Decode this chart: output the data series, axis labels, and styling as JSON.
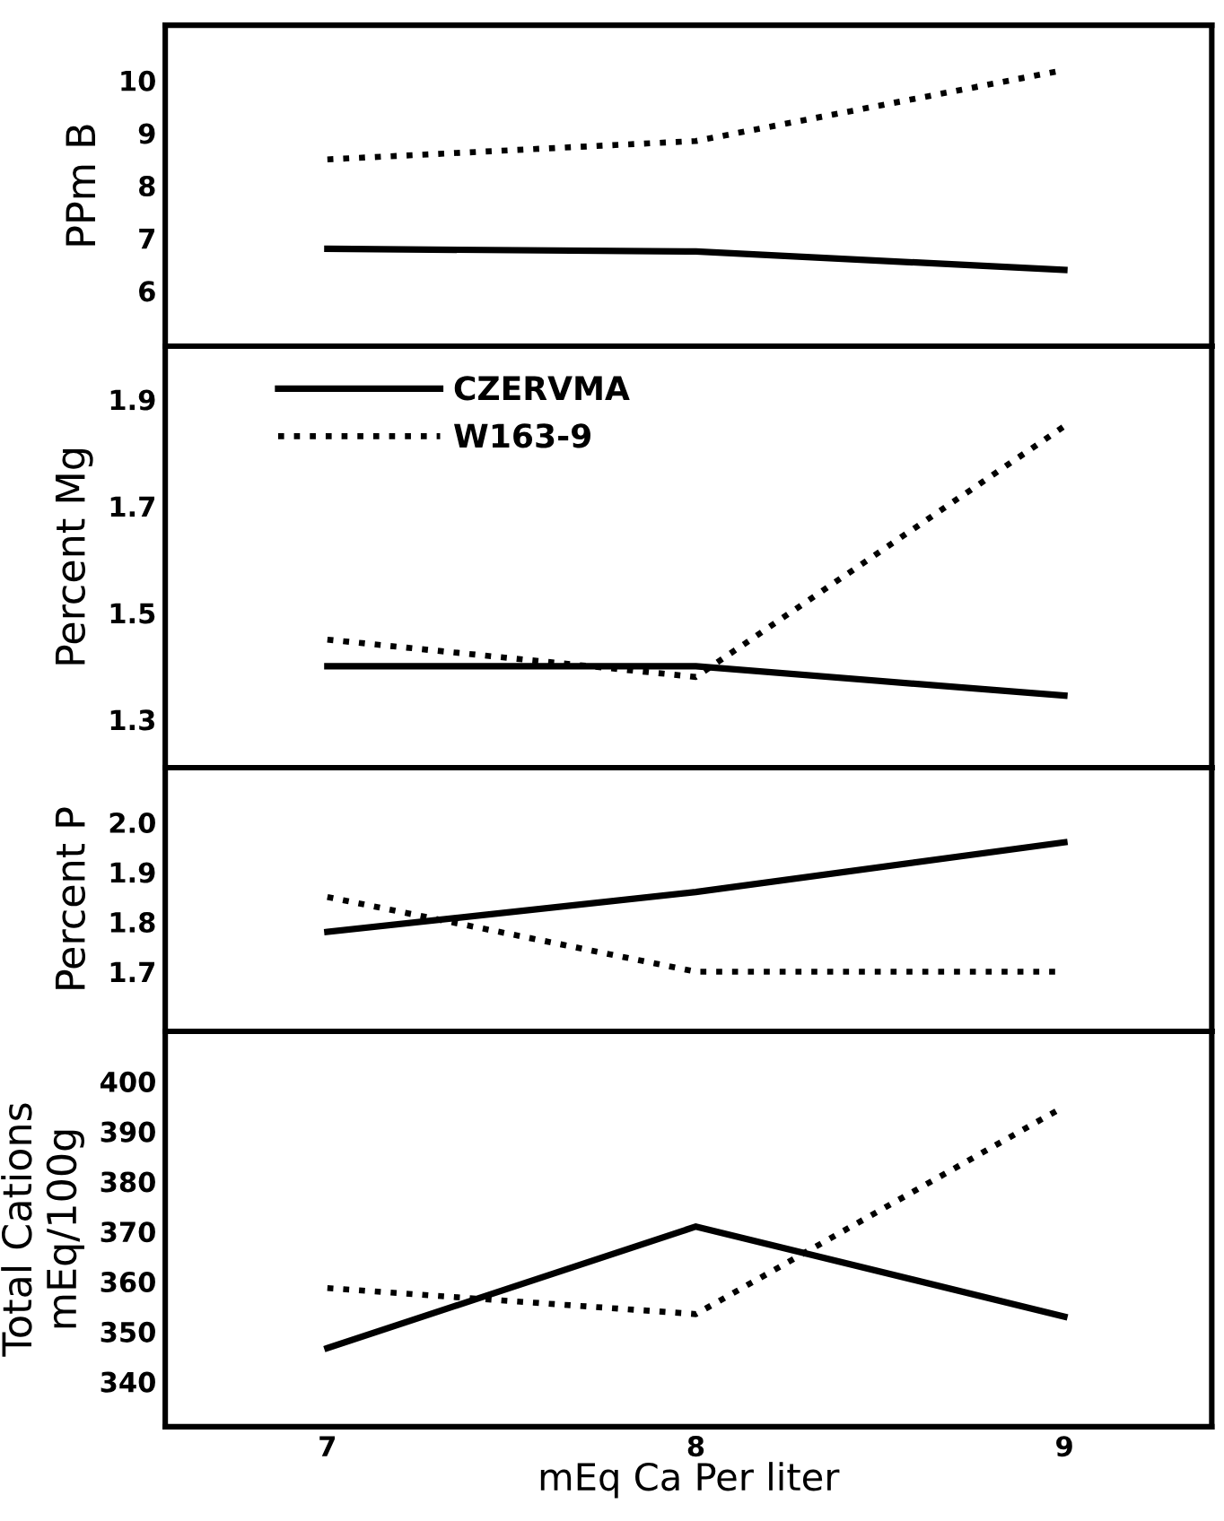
{
  "chart_data": [
    {
      "type": "line",
      "ylabel": "PPm B",
      "x": [
        7,
        8,
        9
      ],
      "xlim": [
        6.56,
        9.4
      ],
      "xticks": [
        7,
        8,
        9
      ],
      "ylim": [
        4.95,
        11.05
      ],
      "yticks": [
        6,
        7,
        8,
        9,
        10
      ],
      "tick_labels": "y",
      "grid": false,
      "legend": false,
      "series": [
        {
          "color": "#000000",
          "line_style": "solid",
          "values": [
            6.8,
            6.75,
            6.4
          ]
        },
        {
          "color": "#000000",
          "line_style": "dotted",
          "values": [
            8.5,
            8.85,
            10.2
          ]
        }
      ]
    },
    {
      "type": "line",
      "ylabel": "Percent Mg",
      "x": [
        7,
        8,
        9
      ],
      "xlim": [
        6.56,
        9.4
      ],
      "xticks": [
        7,
        8,
        9
      ],
      "ylim": [
        1.21,
        2.0
      ],
      "yticks": [
        1.3,
        1.5,
        1.7,
        1.9
      ],
      "tick_labels": "y",
      "grid": false,
      "legend": "top left",
      "series": [
        {
          "name": "CZERVMA",
          "color": "#000000",
          "line_style": "solid",
          "values": [
            1.4,
            1.4,
            1.345
          ]
        },
        {
          "name": "W163-9",
          "color": "#000000",
          "line_style": "dotted",
          "values": [
            1.45,
            1.38,
            1.85
          ]
        }
      ]
    },
    {
      "type": "line",
      "ylabel": "Percent P",
      "x": [
        7,
        8,
        9
      ],
      "xlim": [
        6.56,
        9.4
      ],
      "xticks": [
        7,
        8,
        9
      ],
      "ylim": [
        1.58,
        2.11
      ],
      "yticks": [
        1.7,
        1.8,
        1.9,
        {
          "value": 2.0,
          "label": "2.0"
        }
      ],
      "tick_labels": "y",
      "grid": false,
      "legend": false,
      "series": [
        {
          "color": "#000000",
          "line_style": "solid",
          "values": [
            1.78,
            1.86,
            1.96
          ]
        },
        {
          "color": "#000000",
          "line_style": "dotted",
          "values": [
            1.85,
            1.7,
            1.7
          ]
        }
      ]
    },
    {
      "type": "line",
      "ylabel": "Total Cations\nmEq/100g",
      "xlabel": "mEq Ca Per liter",
      "x": [
        7,
        8,
        9
      ],
      "xlim": [
        6.56,
        9.4
      ],
      "xticks": [
        7,
        8,
        9
      ],
      "ylim": [
        331,
        410
      ],
      "yticks": [
        340,
        350,
        360,
        370,
        380,
        390,
        400
      ],
      "grid": false,
      "legend": false,
      "series": [
        {
          "color": "#000000",
          "line_style": "solid",
          "values": [
            346.7,
            371,
            353
          ]
        },
        {
          "color": "#000000",
          "line_style": "dotted",
          "values": [
            358.7,
            353.5,
            395
          ]
        }
      ]
    }
  ]
}
